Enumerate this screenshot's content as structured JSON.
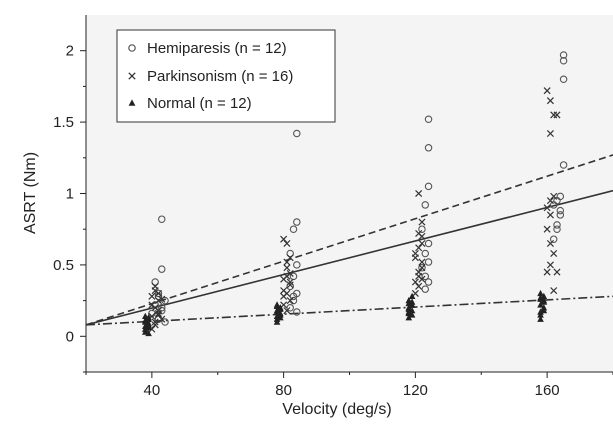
{
  "chart_data": {
    "type": "scatter",
    "xlabel": "Velocity (deg/s)",
    "ylabel": "ASRT (Nm)",
    "xlim": [
      20,
      180
    ],
    "ylim": [
      -0.25,
      2.25
    ],
    "xticks": [
      40,
      80,
      120,
      160
    ],
    "xtick_labels": [
      "40",
      "80",
      "120",
      "160"
    ],
    "yticks": [
      0,
      0.5,
      1,
      1.5,
      2
    ],
    "ytick_labels": [
      "0",
      "0.5",
      "1",
      "1.5",
      "2"
    ],
    "grid": false,
    "legend_position": "top-left",
    "series": [
      {
        "name": "Hemiparesis (n = 12)",
        "marker": "circle",
        "color": "#555555",
        "points": [
          [
            43,
            0.82
          ],
          [
            43,
            0.47
          ],
          [
            41,
            0.38
          ],
          [
            42,
            0.3
          ],
          [
            44,
            0.25
          ],
          [
            43,
            0.2
          ],
          [
            40,
            0.16
          ],
          [
            42,
            0.12
          ],
          [
            44,
            0.1
          ],
          [
            41,
            0.22
          ],
          [
            43,
            0.18
          ],
          [
            42,
            0.28
          ],
          [
            84,
            1.42
          ],
          [
            84,
            0.8
          ],
          [
            83,
            0.75
          ],
          [
            82,
            0.58
          ],
          [
            84,
            0.5
          ],
          [
            83,
            0.42
          ],
          [
            82,
            0.35
          ],
          [
            84,
            0.3
          ],
          [
            83,
            0.25
          ],
          [
            82,
            0.2
          ],
          [
            84,
            0.17
          ],
          [
            83,
            0.28
          ],
          [
            124,
            1.52
          ],
          [
            124,
            1.32
          ],
          [
            124,
            1.05
          ],
          [
            123,
            0.92
          ],
          [
            122,
            0.75
          ],
          [
            124,
            0.65
          ],
          [
            123,
            0.58
          ],
          [
            124,
            0.52
          ],
          [
            122,
            0.48
          ],
          [
            123,
            0.42
          ],
          [
            124,
            0.38
          ],
          [
            123,
            0.33
          ],
          [
            165,
            1.97
          ],
          [
            165,
            1.93
          ],
          [
            165,
            1.8
          ],
          [
            165,
            1.2
          ],
          [
            164,
            0.98
          ],
          [
            163,
            0.95
          ],
          [
            164,
            0.85
          ],
          [
            163,
            0.75
          ],
          [
            162,
            0.68
          ],
          [
            164,
            0.88
          ],
          [
            163,
            0.78
          ],
          [
            162,
            0.92
          ]
        ]
      },
      {
        "name": "Parkinsonism (n = 16)",
        "marker": "x",
        "color": "#333333",
        "points": [
          [
            40,
            0.05
          ],
          [
            41,
            0.1
          ],
          [
            42,
            0.15
          ],
          [
            41,
            0.2
          ],
          [
            42,
            0.25
          ],
          [
            40,
            0.28
          ],
          [
            41,
            0.32
          ],
          [
            42,
            0.18
          ],
          [
            43,
            0.12
          ],
          [
            41,
            0.08
          ],
          [
            40,
            0.22
          ],
          [
            42,
            0.3
          ],
          [
            41,
            0.35
          ],
          [
            43,
            0.26
          ],
          [
            42,
            0.16
          ],
          [
            40,
            0.14
          ],
          [
            80,
            0.68
          ],
          [
            81,
            0.65
          ],
          [
            82,
            0.55
          ],
          [
            81,
            0.48
          ],
          [
            80,
            0.4
          ],
          [
            82,
            0.38
          ],
          [
            81,
            0.3
          ],
          [
            80,
            0.22
          ],
          [
            82,
            0.25
          ],
          [
            81,
            0.18
          ],
          [
            80,
            0.32
          ],
          [
            82,
            0.44
          ],
          [
            81,
            0.52
          ],
          [
            80,
            0.28
          ],
          [
            82,
            0.36
          ],
          [
            81,
            0.42
          ],
          [
            121,
            1.0
          ],
          [
            122,
            0.8
          ],
          [
            121,
            0.72
          ],
          [
            122,
            0.65
          ],
          [
            120,
            0.58
          ],
          [
            122,
            0.52
          ],
          [
            121,
            0.45
          ],
          [
            122,
            0.4
          ],
          [
            121,
            0.35
          ],
          [
            120,
            0.3
          ],
          [
            122,
            0.48
          ],
          [
            121,
            0.62
          ],
          [
            120,
            0.55
          ],
          [
            122,
            0.7
          ],
          [
            121,
            0.42
          ],
          [
            120,
            0.38
          ],
          [
            160,
            1.72
          ],
          [
            161,
            1.65
          ],
          [
            162,
            1.55
          ],
          [
            163,
            1.55
          ],
          [
            161,
            1.42
          ],
          [
            162,
            0.98
          ],
          [
            161,
            0.95
          ],
          [
            160,
            0.9
          ],
          [
            161,
            0.65
          ],
          [
            162,
            0.58
          ],
          [
            161,
            0.5
          ],
          [
            160,
            0.45
          ],
          [
            163,
            0.45
          ],
          [
            162,
            0.32
          ],
          [
            161,
            0.85
          ],
          [
            160,
            0.75
          ]
        ]
      },
      {
        "name": "Normal (n = 12)",
        "marker": "triangle",
        "color": "#222222",
        "points": [
          [
            39,
            0.02
          ],
          [
            38,
            0.05
          ],
          [
            39,
            0.08
          ],
          [
            38,
            0.1
          ],
          [
            39,
            0.12
          ],
          [
            38,
            0.14
          ],
          [
            39,
            0.06
          ],
          [
            38,
            0.03
          ],
          [
            39,
            0.09
          ],
          [
            38,
            0.11
          ],
          [
            39,
            0.13
          ],
          [
            38,
            0.07
          ],
          [
            78,
            0.1
          ],
          [
            78,
            0.12
          ],
          [
            79,
            0.15
          ],
          [
            78,
            0.18
          ],
          [
            79,
            0.2
          ],
          [
            78,
            0.22
          ],
          [
            79,
            0.16
          ],
          [
            78,
            0.14
          ],
          [
            79,
            0.19
          ],
          [
            78,
            0.17
          ],
          [
            79,
            0.13
          ],
          [
            78,
            0.21
          ],
          [
            118,
            0.13
          ],
          [
            118,
            0.16
          ],
          [
            119,
            0.18
          ],
          [
            118,
            0.2
          ],
          [
            119,
            0.22
          ],
          [
            118,
            0.25
          ],
          [
            119,
            0.28
          ],
          [
            118,
            0.17
          ],
          [
            119,
            0.24
          ],
          [
            118,
            0.19
          ],
          [
            119,
            0.15
          ],
          [
            118,
            0.23
          ],
          [
            158,
            0.12
          ],
          [
            158,
            0.15
          ],
          [
            159,
            0.18
          ],
          [
            158,
            0.22
          ],
          [
            159,
            0.24
          ],
          [
            158,
            0.26
          ],
          [
            159,
            0.28
          ],
          [
            158,
            0.3
          ],
          [
            159,
            0.2
          ],
          [
            158,
            0.17
          ],
          [
            159,
            0.25
          ],
          [
            158,
            0.27
          ]
        ]
      }
    ],
    "regression_lines": [
      {
        "series": "Hemiparesis (n = 12)",
        "style": "dashed",
        "x": [
          20,
          180
        ],
        "y": [
          0.08,
          1.27
        ]
      },
      {
        "series": "Parkinsonism (n = 16)",
        "style": "solid",
        "x": [
          20,
          180
        ],
        "y": [
          0.08,
          1.02
        ]
      },
      {
        "series": "Normal (n = 12)",
        "style": "dash-dot",
        "x": [
          20,
          180
        ],
        "y": [
          0.08,
          0.28
        ]
      }
    ]
  }
}
